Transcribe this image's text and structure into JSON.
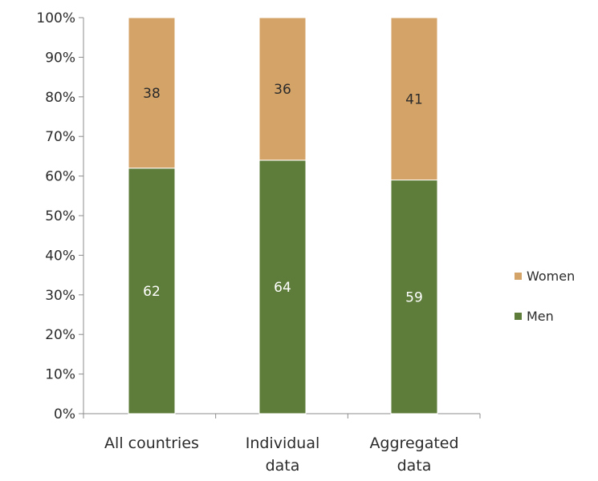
{
  "chart_data": {
    "type": "bar",
    "stacked": true,
    "percent": true,
    "categories": [
      [
        "All countries"
      ],
      [
        "Individual",
        "data"
      ],
      [
        "Aggregated",
        "data"
      ]
    ],
    "series": [
      {
        "name": "Men",
        "values": [
          62,
          64,
          59
        ],
        "color": "#5e7d3a",
        "label_color": "#ffffff"
      },
      {
        "name": "Women",
        "values": [
          38,
          36,
          41
        ],
        "color": "#d4a368",
        "label_color": "#2b2b2b"
      }
    ],
    "y_ticks": [
      "0%",
      "10%",
      "20%",
      "30%",
      "40%",
      "50%",
      "60%",
      "70%",
      "80%",
      "90%",
      "100%"
    ],
    "ylim": [
      0,
      100
    ],
    "grid": false,
    "legend": {
      "position": "right",
      "order": [
        "Women",
        "Men"
      ]
    }
  }
}
